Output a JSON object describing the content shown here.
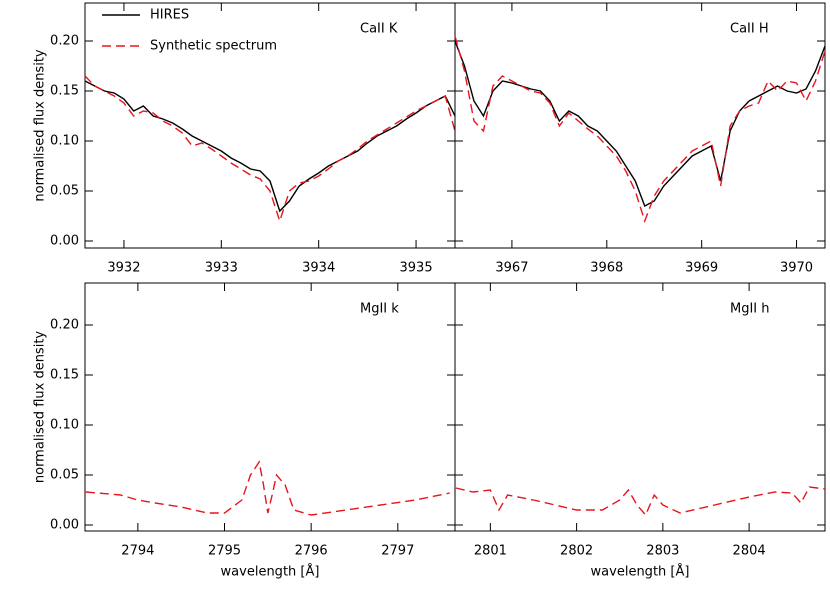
{
  "chart_data": [
    {
      "type": "line",
      "annotation": "CaII K",
      "ylabel": "normalised flux density",
      "legend": true,
      "xlim": [
        3931.6,
        3935.4
      ],
      "xticks": [
        3932,
        3933,
        3934,
        3935
      ],
      "ylim": [
        -0.007,
        0.238
      ],
      "yticks": [
        {
          "value": 0,
          "label": "0.00"
        },
        {
          "value": 0.05,
          "label": "0.05"
        },
        {
          "value": 0.1,
          "label": "0.10"
        },
        {
          "value": 0.15,
          "label": "0.15"
        },
        {
          "value": 0.2,
          "label": "0.20"
        }
      ],
      "x": [
        3931.6,
        3931.7,
        3931.8,
        3931.9,
        3932.0,
        3932.1,
        3932.2,
        3932.3,
        3932.4,
        3932.5,
        3932.6,
        3932.7,
        3932.8,
        3932.9,
        3933.0,
        3933.1,
        3933.2,
        3933.3,
        3933.4,
        3933.5,
        3933.6,
        3933.7,
        3933.8,
        3933.9,
        3934.0,
        3934.1,
        3934.2,
        3934.3,
        3934.4,
        3934.5,
        3934.6,
        3934.7,
        3934.8,
        3934.9,
        3935.0,
        3935.1,
        3935.2,
        3935.3,
        3935.4
      ],
      "series": [
        {
          "name": "HIRES",
          "color": "#000000",
          "dashed": false,
          "values": [
            0.16,
            0.155,
            0.15,
            0.148,
            0.142,
            0.13,
            0.135,
            0.125,
            0.122,
            0.118,
            0.112,
            0.105,
            0.1,
            0.095,
            0.09,
            0.083,
            0.078,
            0.072,
            0.07,
            0.06,
            0.03,
            0.04,
            0.055,
            0.062,
            0.068,
            0.075,
            0.08,
            0.085,
            0.09,
            0.098,
            0.105,
            0.11,
            0.115,
            0.122,
            0.128,
            0.135,
            0.14,
            0.145,
            0.125
          ]
        },
        {
          "name": "Synthetic spectrum",
          "color": "#e8141c",
          "dashed": true,
          "values": [
            0.165,
            0.155,
            0.15,
            0.145,
            0.138,
            0.125,
            0.13,
            0.128,
            0.12,
            0.115,
            0.108,
            0.095,
            0.098,
            0.092,
            0.085,
            0.078,
            0.072,
            0.066,
            0.062,
            0.05,
            0.02,
            0.05,
            0.058,
            0.06,
            0.065,
            0.072,
            0.08,
            0.085,
            0.092,
            0.1,
            0.106,
            0.112,
            0.118,
            0.124,
            0.13,
            0.135,
            0.14,
            0.145,
            0.11
          ]
        }
      ]
    },
    {
      "type": "line",
      "annotation": "CaII H",
      "xlim": [
        3966.4,
        3970.3
      ],
      "xticks": [
        3967,
        3968,
        3969,
        3970
      ],
      "ylim": [
        -0.007,
        0.238
      ],
      "x": [
        3966.4,
        3966.5,
        3966.6,
        3966.7,
        3966.8,
        3966.9,
        3967.0,
        3967.1,
        3967.2,
        3967.3,
        3967.4,
        3967.5,
        3967.6,
        3967.7,
        3967.8,
        3967.9,
        3968.0,
        3968.1,
        3968.2,
        3968.3,
        3968.4,
        3968.5,
        3968.6,
        3968.7,
        3968.8,
        3968.9,
        3969.0,
        3969.1,
        3969.2,
        3969.3,
        3969.4,
        3969.5,
        3969.6,
        3969.7,
        3969.8,
        3969.9,
        3970.0,
        3970.1,
        3970.2,
        3970.3
      ],
      "series": [
        {
          "color": "#000000",
          "dashed": false,
          "values": [
            0.2,
            0.175,
            0.14,
            0.125,
            0.15,
            0.16,
            0.158,
            0.155,
            0.152,
            0.15,
            0.14,
            0.12,
            0.13,
            0.125,
            0.115,
            0.11,
            0.1,
            0.09,
            0.075,
            0.06,
            0.035,
            0.04,
            0.055,
            0.065,
            0.075,
            0.085,
            0.09,
            0.095,
            0.06,
            0.11,
            0.13,
            0.14,
            0.145,
            0.15,
            0.155,
            0.15,
            0.148,
            0.152,
            0.17,
            0.195
          ]
        },
        {
          "color": "#e8141c",
          "dashed": true,
          "values": [
            0.205,
            0.17,
            0.12,
            0.11,
            0.155,
            0.165,
            0.16,
            0.155,
            0.15,
            0.148,
            0.138,
            0.115,
            0.128,
            0.12,
            0.112,
            0.105,
            0.095,
            0.085,
            0.07,
            0.05,
            0.02,
            0.045,
            0.06,
            0.07,
            0.08,
            0.09,
            0.095,
            0.1,
            0.055,
            0.115,
            0.13,
            0.135,
            0.138,
            0.16,
            0.15,
            0.16,
            0.158,
            0.14,
            0.16,
            0.19
          ]
        }
      ]
    },
    {
      "type": "line",
      "annotation": "MgII k",
      "ylabel": "normalised flux density",
      "xlabel": "wavelength [Å]",
      "xlim": [
        2793.39,
        2797.66
      ],
      "xticks": [
        2794,
        2795,
        2796,
        2797
      ],
      "ylim": [
        -0.006,
        0.242
      ],
      "yticks": [
        {
          "value": 0,
          "label": "0.00"
        },
        {
          "value": 0.05,
          "label": "0.05"
        },
        {
          "value": 0.1,
          "label": "0.10"
        },
        {
          "value": 0.15,
          "label": "0.15"
        },
        {
          "value": 0.2,
          "label": "0.20"
        }
      ],
      "x": [
        2793.4,
        2793.8,
        2794.0,
        2794.2,
        2794.5,
        2794.8,
        2795.0,
        2795.2,
        2795.3,
        2795.4,
        2795.45,
        2795.5,
        2795.55,
        2795.6,
        2795.7,
        2795.8,
        2796.0,
        2796.4,
        2796.8,
        2797.2,
        2797.6
      ],
      "series": [
        {
          "color": "#e8141c",
          "dashed": true,
          "values": [
            0.033,
            0.03,
            0.025,
            0.022,
            0.018,
            0.012,
            0.012,
            0.025,
            0.05,
            0.063,
            0.04,
            0.012,
            0.03,
            0.05,
            0.04,
            0.015,
            0.01,
            0.015,
            0.02,
            0.025,
            0.032
          ]
        }
      ]
    },
    {
      "type": "line",
      "annotation": "MgII h",
      "xlabel": "wavelength [Å]",
      "xlim": [
        2800.59,
        2804.88
      ],
      "xticks": [
        2801,
        2802,
        2803,
        2804
      ],
      "ylim": [
        -0.006,
        0.242
      ],
      "x": [
        2800.6,
        2800.8,
        2801.0,
        2801.1,
        2801.2,
        2801.5,
        2802.0,
        2802.3,
        2802.5,
        2802.6,
        2802.7,
        2802.8,
        2802.9,
        2803.0,
        2803.2,
        2803.6,
        2804.0,
        2804.3,
        2804.5,
        2804.6,
        2804.7,
        2804.88
      ],
      "series": [
        {
          "color": "#e8141c",
          "dashed": true,
          "values": [
            0.037,
            0.033,
            0.035,
            0.015,
            0.03,
            0.025,
            0.015,
            0.015,
            0.025,
            0.035,
            0.02,
            0.01,
            0.03,
            0.02,
            0.012,
            0.02,
            0.028,
            0.033,
            0.032,
            0.022,
            0.038,
            0.036
          ]
        }
      ]
    }
  ]
}
